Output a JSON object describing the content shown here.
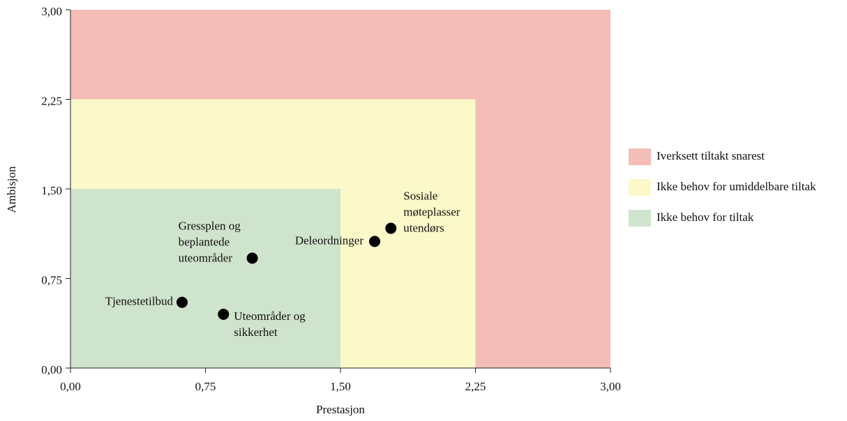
{
  "chart_data": {
    "type": "scatter",
    "x_label": "Prestasjon",
    "y_label": "Ambisjon",
    "xlim": [
      0,
      3
    ],
    "ylim": [
      0,
      3
    ],
    "xticks": [
      {
        "value": 0,
        "label": "0,00"
      },
      {
        "value": 0.75,
        "label": "0,75"
      },
      {
        "value": 1.5,
        "label": "1,50"
      },
      {
        "value": 2.25,
        "label": "2,25"
      },
      {
        "value": 3,
        "label": "3,00"
      }
    ],
    "yticks": [
      {
        "value": 0,
        "label": "0,00"
      },
      {
        "value": 0.75,
        "label": "0,75"
      },
      {
        "value": 1.5,
        "label": "1,50"
      },
      {
        "value": 2.25,
        "label": "2,25"
      },
      {
        "value": 3,
        "label": "3,00"
      }
    ],
    "zones": [
      {
        "name": "Iverksett tiltakt snarest",
        "color": "#f5bdb8",
        "limit": 3
      },
      {
        "name": "Ikke behov for umiddelbare tiltak",
        "color": "#fbf9c9",
        "limit": 2.25
      },
      {
        "name": "Ikke behov for tiltak",
        "color": "#cfe4cc",
        "limit": 1.5
      }
    ],
    "point_color": "#000000",
    "labels": [
      [
        "Sosiale",
        "møteplasser",
        "utendørs"
      ],
      [
        "Deleordninger"
      ],
      [
        "Gressplen og",
        "beplantede",
        "uteområder"
      ],
      [
        "Tjenestetilbud"
      ],
      [
        "Uteområder og",
        "sikkerhet"
      ]
    ],
    "x": [
      1.78,
      1.69,
      1.01,
      0.62,
      0.85
    ],
    "y": [
      1.17,
      1.06,
      0.92,
      0.55,
      0.45
    ]
  }
}
